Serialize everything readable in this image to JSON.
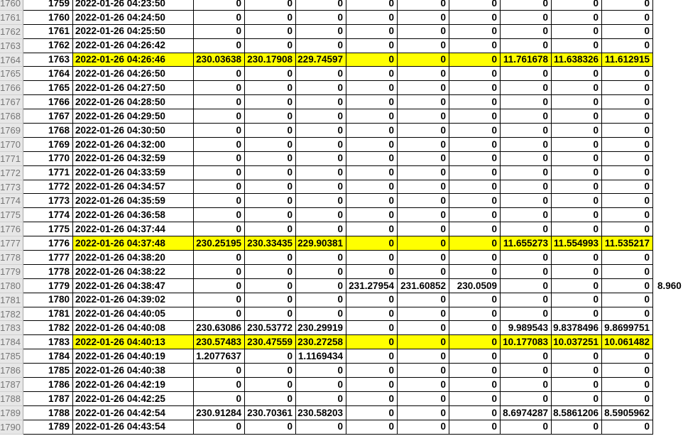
{
  "colors": {
    "highlight": "#ffff00",
    "header_bg": "#e7e7e7",
    "header_text": "#767676",
    "grid_border": "#000000"
  },
  "table": {
    "rows": [
      {
        "sheet_row": "1760",
        "id": "1759",
        "timestamp": "2022-01-26 04:23:50",
        "values": [
          "0",
          "0",
          "0",
          "0",
          "0",
          "0",
          "0",
          "0",
          "0"
        ],
        "extra": "",
        "highlighted": false
      },
      {
        "sheet_row": "1761",
        "id": "1760",
        "timestamp": "2022-01-26 04:24:50",
        "values": [
          "0",
          "0",
          "0",
          "0",
          "0",
          "0",
          "0",
          "0",
          "0"
        ],
        "extra": "",
        "highlighted": false
      },
      {
        "sheet_row": "1762",
        "id": "1761",
        "timestamp": "2022-01-26 04:25:50",
        "values": [
          "0",
          "0",
          "0",
          "0",
          "0",
          "0",
          "0",
          "0",
          "0"
        ],
        "extra": "",
        "highlighted": false
      },
      {
        "sheet_row": "1763",
        "id": "1762",
        "timestamp": "2022-01-26 04:26:42",
        "values": [
          "0",
          "0",
          "0",
          "0",
          "0",
          "0",
          "0",
          "0",
          "0"
        ],
        "extra": "",
        "highlighted": false
      },
      {
        "sheet_row": "1764",
        "id": "1763",
        "timestamp": "2022-01-26 04:26:46",
        "values": [
          "230.03638",
          "230.17908",
          "229.74597",
          "0",
          "0",
          "0",
          "11.761678",
          "11.638326",
          "11.612915"
        ],
        "extra": "",
        "highlighted": true
      },
      {
        "sheet_row": "1765",
        "id": "1764",
        "timestamp": "2022-01-26 04:26:50",
        "values": [
          "0",
          "0",
          "0",
          "0",
          "0",
          "0",
          "0",
          "0",
          "0"
        ],
        "extra": "",
        "highlighted": false
      },
      {
        "sheet_row": "1766",
        "id": "1765",
        "timestamp": "2022-01-26 04:27:50",
        "values": [
          "0",
          "0",
          "0",
          "0",
          "0",
          "0",
          "0",
          "0",
          "0"
        ],
        "extra": "",
        "highlighted": false
      },
      {
        "sheet_row": "1767",
        "id": "1766",
        "timestamp": "2022-01-26 04:28:50",
        "values": [
          "0",
          "0",
          "0",
          "0",
          "0",
          "0",
          "0",
          "0",
          "0"
        ],
        "extra": "",
        "highlighted": false
      },
      {
        "sheet_row": "1768",
        "id": "1767",
        "timestamp": "2022-01-26 04:29:50",
        "values": [
          "0",
          "0",
          "0",
          "0",
          "0",
          "0",
          "0",
          "0",
          "0"
        ],
        "extra": "",
        "highlighted": false
      },
      {
        "sheet_row": "1769",
        "id": "1768",
        "timestamp": "2022-01-26 04:30:50",
        "values": [
          "0",
          "0",
          "0",
          "0",
          "0",
          "0",
          "0",
          "0",
          "0"
        ],
        "extra": "",
        "highlighted": false
      },
      {
        "sheet_row": "1770",
        "id": "1769",
        "timestamp": "2022-01-26 04:32:00",
        "values": [
          "0",
          "0",
          "0",
          "0",
          "0",
          "0",
          "0",
          "0",
          "0"
        ],
        "extra": "",
        "highlighted": false
      },
      {
        "sheet_row": "1771",
        "id": "1770",
        "timestamp": "2022-01-26 04:32:59",
        "values": [
          "0",
          "0",
          "0",
          "0",
          "0",
          "0",
          "0",
          "0",
          "0"
        ],
        "extra": "",
        "highlighted": false
      },
      {
        "sheet_row": "1772",
        "id": "1771",
        "timestamp": "2022-01-26 04:33:59",
        "values": [
          "0",
          "0",
          "0",
          "0",
          "0",
          "0",
          "0",
          "0",
          "0"
        ],
        "extra": "",
        "highlighted": false
      },
      {
        "sheet_row": "1773",
        "id": "1772",
        "timestamp": "2022-01-26 04:34:57",
        "values": [
          "0",
          "0",
          "0",
          "0",
          "0",
          "0",
          "0",
          "0",
          "0"
        ],
        "extra": "",
        "highlighted": false
      },
      {
        "sheet_row": "1774",
        "id": "1773",
        "timestamp": "2022-01-26 04:35:59",
        "values": [
          "0",
          "0",
          "0",
          "0",
          "0",
          "0",
          "0",
          "0",
          "0"
        ],
        "extra": "",
        "highlighted": false
      },
      {
        "sheet_row": "1775",
        "id": "1774",
        "timestamp": "2022-01-26 04:36:58",
        "values": [
          "0",
          "0",
          "0",
          "0",
          "0",
          "0",
          "0",
          "0",
          "0"
        ],
        "extra": "",
        "highlighted": false
      },
      {
        "sheet_row": "1776",
        "id": "1775",
        "timestamp": "2022-01-26 04:37:44",
        "values": [
          "0",
          "0",
          "0",
          "0",
          "0",
          "0",
          "0",
          "0",
          "0"
        ],
        "extra": "",
        "highlighted": false
      },
      {
        "sheet_row": "1777",
        "id": "1776",
        "timestamp": "2022-01-26 04:37:48",
        "values": [
          "230.25195",
          "230.33435",
          "229.90381",
          "0",
          "0",
          "0",
          "11.655273",
          "11.554993",
          "11.535217"
        ],
        "extra": "",
        "highlighted": true
      },
      {
        "sheet_row": "1778",
        "id": "1777",
        "timestamp": "2022-01-26 04:38:20",
        "values": [
          "0",
          "0",
          "0",
          "0",
          "0",
          "0",
          "0",
          "0",
          "0"
        ],
        "extra": "",
        "highlighted": false
      },
      {
        "sheet_row": "1779",
        "id": "1778",
        "timestamp": "2022-01-26 04:38:22",
        "values": [
          "0",
          "0",
          "0",
          "0",
          "0",
          "0",
          "0",
          "0",
          "0"
        ],
        "extra": "",
        "highlighted": false
      },
      {
        "sheet_row": "1780",
        "id": "1779",
        "timestamp": "2022-01-26 04:38:47",
        "values": [
          "0",
          "0",
          "0",
          "231.27954",
          "231.60852",
          "230.0509",
          "0",
          "0",
          "0"
        ],
        "extra": "8.960",
        "highlighted": false
      },
      {
        "sheet_row": "1781",
        "id": "1780",
        "timestamp": "2022-01-26 04:39:02",
        "values": [
          "0",
          "0",
          "0",
          "0",
          "0",
          "0",
          "0",
          "0",
          "0"
        ],
        "extra": "",
        "highlighted": false
      },
      {
        "sheet_row": "1782",
        "id": "1781",
        "timestamp": "2022-01-26 04:40:05",
        "values": [
          "0",
          "0",
          "0",
          "0",
          "0",
          "0",
          "0",
          "0",
          "0"
        ],
        "extra": "",
        "highlighted": false
      },
      {
        "sheet_row": "1783",
        "id": "1782",
        "timestamp": "2022-01-26 04:40:08",
        "values": [
          "230.63086",
          "230.53772",
          "230.29919",
          "0",
          "0",
          "0",
          "9.989543",
          "9.8378496",
          "9.8699751"
        ],
        "extra": "",
        "highlighted": false
      },
      {
        "sheet_row": "1784",
        "id": "1783",
        "timestamp": "2022-01-26 04:40:13",
        "values": [
          "230.57483",
          "230.47559",
          "230.27258",
          "0",
          "0",
          "0",
          "10.177083",
          "10.037251",
          "10.061482"
        ],
        "extra": "",
        "highlighted": true
      },
      {
        "sheet_row": "1785",
        "id": "1784",
        "timestamp": "2022-01-26 04:40:19",
        "values": [
          "1.2077637",
          "0",
          "1.1169434",
          "0",
          "0",
          "0",
          "0",
          "0",
          "0"
        ],
        "extra": "",
        "highlighted": false
      },
      {
        "sheet_row": "1786",
        "id": "1785",
        "timestamp": "2022-01-26 04:40:38",
        "values": [
          "0",
          "0",
          "0",
          "0",
          "0",
          "0",
          "0",
          "0",
          "0"
        ],
        "extra": "",
        "highlighted": false
      },
      {
        "sheet_row": "1787",
        "id": "1786",
        "timestamp": "2022-01-26 04:42:19",
        "values": [
          "0",
          "0",
          "0",
          "0",
          "0",
          "0",
          "0",
          "0",
          "0"
        ],
        "extra": "",
        "highlighted": false
      },
      {
        "sheet_row": "1788",
        "id": "1787",
        "timestamp": "2022-01-26 04:42:25",
        "values": [
          "0",
          "0",
          "0",
          "0",
          "0",
          "0",
          "0",
          "0",
          "0"
        ],
        "extra": "",
        "highlighted": false
      },
      {
        "sheet_row": "1789",
        "id": "1788",
        "timestamp": "2022-01-26 04:42:54",
        "values": [
          "230.91284",
          "230.70361",
          "230.58203",
          "0",
          "0",
          "0",
          "8.6974287",
          "8.5861206",
          "8.5905962"
        ],
        "extra": "",
        "highlighted": false
      },
      {
        "sheet_row": "1790",
        "id": "1789",
        "timestamp": "2022-01-26 04:43:54",
        "values": [
          "0",
          "0",
          "0",
          "0",
          "0",
          "0",
          "0",
          "0",
          "0"
        ],
        "extra": "",
        "highlighted": false
      }
    ]
  }
}
